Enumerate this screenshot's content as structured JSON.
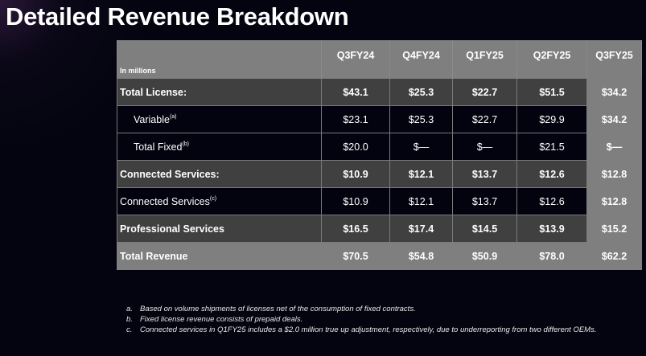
{
  "title": "Detailed Revenue Breakdown",
  "table": {
    "unit_label": "In millions",
    "columns": [
      "Q3FY24",
      "Q4FY24",
      "Q1FY25",
      "Q2FY25",
      "Q3FY25"
    ],
    "rows": [
      {
        "label": "Total License:",
        "note": "",
        "style": "main",
        "values": [
          "$43.1",
          "$25.3",
          "$22.7",
          "$51.5",
          "$34.2"
        ]
      },
      {
        "label": "Variable",
        "note": "(a)",
        "style": "sub",
        "values": [
          "$23.1",
          "$25.3",
          "$22.7",
          "$29.9",
          "$34.2"
        ]
      },
      {
        "label": "Total Fixed",
        "note": "(b)",
        "style": "sub",
        "values": [
          "$20.0",
          "$—",
          "$—",
          "$21.5",
          "$—"
        ]
      },
      {
        "label": "Connected Services:",
        "note": "",
        "style": "main",
        "values": [
          "$10.9",
          "$12.1",
          "$13.7",
          "$12.6",
          "$12.8"
        ]
      },
      {
        "label": "Connected Services",
        "note": "(c)",
        "style": "sub",
        "values": [
          "$10.9",
          "$12.1",
          "$13.7",
          "$12.6",
          "$12.8"
        ]
      },
      {
        "label": "Professional Services",
        "note": "",
        "style": "main",
        "values": [
          "$16.5",
          "$17.4",
          "$14.5",
          "$13.9",
          "$15.2"
        ]
      },
      {
        "label": "Total Revenue",
        "note": "",
        "style": "total",
        "values": [
          "$70.5",
          "$54.8",
          "$50.9",
          "$78.0",
          "$62.2"
        ]
      }
    ]
  },
  "footnotes": [
    {
      "key": "a.",
      "text": "Based on volume shipments of licenses net of the consumption of fixed contracts."
    },
    {
      "key": "b.",
      "text": "Fixed license revenue consists of prepaid deals."
    },
    {
      "key": "c.",
      "text": "Connected services in Q1FY25 includes a $2.0 million true up adjustment, respectively, due to underreporting from two different OEMs."
    }
  ],
  "colors": {
    "background": "#03040f",
    "header": "#7f7f7f",
    "main_row": "#404040",
    "sub_row": "#02030f",
    "highlight_column": "#7f7f7f"
  }
}
